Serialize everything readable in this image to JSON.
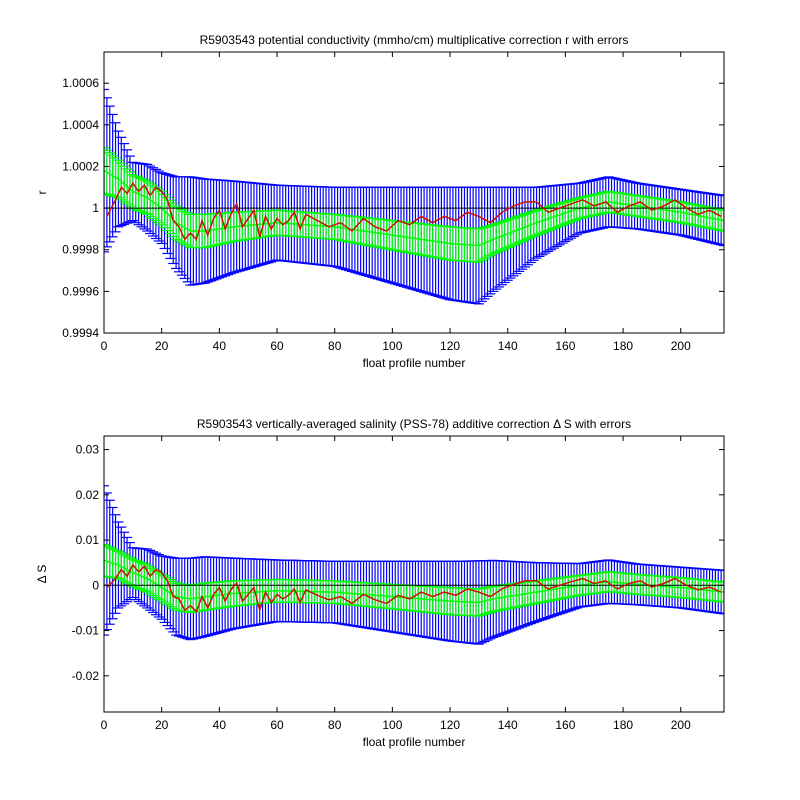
{
  "chart_data": [
    {
      "type": "line",
      "title": "R5903543 potential conductivity (mmho/cm) multiplicative correction r with errors",
      "xlabel": "float profile number",
      "ylabel": "r",
      "xlim": [
        0,
        215
      ],
      "ylim": [
        0.9994,
        1.00075
      ],
      "xticks": [
        0,
        20,
        40,
        60,
        80,
        100,
        120,
        140,
        160,
        180,
        200
      ],
      "xtick_labels": [
        "0",
        "20",
        "40",
        "60",
        "80",
        "100",
        "120",
        "140",
        "160",
        "180",
        "200"
      ],
      "yticks": [
        0.9994,
        0.9996,
        0.9998,
        1,
        1.0002,
        1.0004,
        1.0006
      ],
      "ytick_labels": [
        "0.9994",
        "0.9996",
        "0.9998",
        "1",
        "1.0002",
        "1.0004",
        "1.0006"
      ],
      "grid": false,
      "reference_line": 1,
      "series": [
        {
          "role": "fitted correction with error bars",
          "colors": {
            "fit": "#00ff00",
            "error": "#0000ff"
          },
          "points": [
            {
              "x": 0,
              "center": 1.00018,
              "inner": 0.00011,
              "outer": 0.00039
            },
            {
              "x": 5,
              "center": 1.00014,
              "inner": 9e-05,
              "outer": 0.00023
            },
            {
              "x": 10,
              "center": 1.00008,
              "inner": 8e-05,
              "outer": 0.00014
            },
            {
              "x": 15,
              "center": 1.00005,
              "inner": 8e-05,
              "outer": 0.00016
            },
            {
              "x": 20,
              "center": 1.0,
              "inner": 8e-05,
              "outer": 0.00017
            },
            {
              "x": 25,
              "center": 0.99993,
              "inner": 8e-05,
              "outer": 0.00022
            },
            {
              "x": 30,
              "center": 0.99989,
              "inner": 8e-05,
              "outer": 0.00026
            },
            {
              "x": 35,
              "center": 0.99989,
              "inner": 8e-05,
              "outer": 0.00025
            },
            {
              "x": 45,
              "center": 0.99991,
              "inner": 7e-05,
              "outer": 0.00022
            },
            {
              "x": 60,
              "center": 0.99993,
              "inner": 6e-05,
              "outer": 0.00018
            },
            {
              "x": 80,
              "center": 0.99991,
              "inner": 6e-05,
              "outer": 0.00019
            },
            {
              "x": 100,
              "center": 0.99987,
              "inner": 7e-05,
              "outer": 0.00023
            },
            {
              "x": 120,
              "center": 0.99983,
              "inner": 8e-05,
              "outer": 0.00027
            },
            {
              "x": 130,
              "center": 0.99982,
              "inner": 8e-05,
              "outer": 0.00028
            },
            {
              "x": 135,
              "center": 0.99985,
              "inner": 7e-05,
              "outer": 0.00025
            },
            {
              "x": 150,
              "center": 0.99993,
              "inner": 6e-05,
              "outer": 0.00017
            },
            {
              "x": 165,
              "center": 1.0,
              "inner": 5e-05,
              "outer": 0.00012
            },
            {
              "x": 175,
              "center": 1.00003,
              "inner": 5e-05,
              "outer": 0.00012
            },
            {
              "x": 185,
              "center": 1.00001,
              "inner": 5e-05,
              "outer": 0.00011
            },
            {
              "x": 200,
              "center": 0.99998,
              "inner": 5e-05,
              "outer": 0.00011
            },
            {
              "x": 215,
              "center": 0.99994,
              "inner": 5e-05,
              "outer": 0.00012
            }
          ]
        },
        {
          "role": "profile correction",
          "color": "#cc1100",
          "x": [
            1,
            4,
            6,
            8,
            10,
            12,
            14,
            16,
            18,
            20,
            22,
            24,
            26,
            28,
            30,
            32,
            34,
            36,
            38,
            40,
            42,
            44,
            46,
            48,
            50,
            52,
            54,
            56,
            58,
            60,
            62,
            64,
            66,
            68,
            70,
            74,
            78,
            82,
            86,
            90,
            94,
            98,
            102,
            106,
            110,
            114,
            118,
            122,
            126,
            130,
            134,
            138,
            142,
            146,
            150,
            154,
            158,
            162,
            166,
            170,
            174,
            178,
            182,
            186,
            190,
            194,
            198,
            202,
            206,
            210,
            214
          ],
          "values": [
            0.99996,
            1.00004,
            1.0001,
            1.00007,
            1.00012,
            1.00008,
            1.00011,
            1.00006,
            1.0001,
            1.00008,
            1.00004,
            0.99994,
            0.99991,
            0.99985,
            0.99988,
            0.99985,
            0.99994,
            0.99987,
            0.99995,
            0.99999,
            0.9999,
            0.99997,
            1.00002,
            0.99991,
            0.99995,
            0.99999,
            0.99986,
            0.99996,
            0.9999,
            0.99995,
            0.99992,
            0.99994,
            0.99998,
            0.9999,
            0.99997,
            0.99994,
            0.99991,
            0.99993,
            0.99989,
            0.99995,
            0.99991,
            0.99989,
            0.99994,
            0.99992,
            0.99996,
            0.99993,
            0.99996,
            0.99994,
            0.99998,
            0.99996,
            0.99993,
            0.99998,
            1.00001,
            1.00003,
            1.00003,
            0.99998,
            1.0,
            1.00002,
            1.00004,
            1.00001,
            1.00003,
            0.99998,
            1.00001,
            1.00003,
            0.99999,
            1.00001,
            1.00004,
            1.0,
            0.99997,
            0.99999,
            0.99996
          ]
        }
      ]
    },
    {
      "type": "line",
      "title": "R5903543 vertically-averaged salinity (PSS-78) additive correction Δ S with errors",
      "xlabel": "float profile number",
      "ylabel": "Δ S",
      "xlim": [
        0,
        215
      ],
      "ylim": [
        -0.028,
        0.033
      ],
      "xticks": [
        0,
        20,
        40,
        60,
        80,
        100,
        120,
        140,
        160,
        180,
        200
      ],
      "xtick_labels": [
        "0",
        "20",
        "40",
        "60",
        "80",
        "100",
        "120",
        "140",
        "160",
        "180",
        "200"
      ],
      "yticks": [
        -0.02,
        -0.01,
        0,
        0.01,
        0.02,
        0.03
      ],
      "ytick_labels": [
        "-0.02",
        "-0.01",
        "0",
        "0.01",
        "0.02",
        "0.03"
      ],
      "grid": false,
      "reference_line": 0,
      "series": [
        {
          "role": "fitted correction with error bars",
          "colors": {
            "fit": "#00ff00",
            "error": "#0000ff"
          },
          "points": [
            {
              "x": 0,
              "center": 0.0055,
              "inner": 0.0035,
              "outer": 0.0165
            },
            {
              "x": 5,
              "center": 0.0045,
              "inner": 0.003,
              "outer": 0.0095
            },
            {
              "x": 10,
              "center": 0.0028,
              "inner": 0.003,
              "outer": 0.0055
            },
            {
              "x": 15,
              "center": 0.0015,
              "inner": 0.003,
              "outer": 0.0065
            },
            {
              "x": 20,
              "center": -0.0005,
              "inner": 0.003,
              "outer": 0.007
            },
            {
              "x": 25,
              "center": -0.0025,
              "inner": 0.003,
              "outer": 0.0085
            },
            {
              "x": 30,
              "center": -0.003,
              "inner": 0.003,
              "outer": 0.009
            },
            {
              "x": 35,
              "center": -0.0025,
              "inner": 0.003,
              "outer": 0.0088
            },
            {
              "x": 45,
              "center": -0.0018,
              "inner": 0.0028,
              "outer": 0.0078
            },
            {
              "x": 60,
              "center": -0.0012,
              "inner": 0.0025,
              "outer": 0.0068
            },
            {
              "x": 80,
              "center": -0.0015,
              "inner": 0.0025,
              "outer": 0.0068
            },
            {
              "x": 100,
              "center": -0.0025,
              "inner": 0.0027,
              "outer": 0.0078
            },
            {
              "x": 120,
              "center": -0.0035,
              "inner": 0.003,
              "outer": 0.0088
            },
            {
              "x": 130,
              "center": -0.0038,
              "inner": 0.003,
              "outer": 0.0092
            },
            {
              "x": 135,
              "center": -0.003,
              "inner": 0.0028,
              "outer": 0.0085
            },
            {
              "x": 150,
              "center": -0.0015,
              "inner": 0.0025,
              "outer": 0.0065
            },
            {
              "x": 165,
              "center": 0.0,
              "inner": 0.0022,
              "outer": 0.0048
            },
            {
              "x": 175,
              "center": 0.0008,
              "inner": 0.0022,
              "outer": 0.0048
            },
            {
              "x": 185,
              "center": 0.0002,
              "inner": 0.0022,
              "outer": 0.0045
            },
            {
              "x": 200,
              "center": -0.0005,
              "inner": 0.0022,
              "outer": 0.0045
            },
            {
              "x": 215,
              "center": -0.0015,
              "inner": 0.0022,
              "outer": 0.0048
            }
          ]
        },
        {
          "role": "profile correction",
          "color": "#cc1100",
          "x": [
            1,
            4,
            6,
            8,
            10,
            12,
            14,
            16,
            18,
            20,
            22,
            24,
            26,
            28,
            30,
            32,
            34,
            36,
            38,
            40,
            42,
            44,
            46,
            48,
            50,
            52,
            54,
            56,
            58,
            60,
            62,
            64,
            66,
            68,
            70,
            74,
            78,
            82,
            86,
            90,
            94,
            98,
            102,
            106,
            110,
            114,
            118,
            122,
            126,
            130,
            134,
            138,
            142,
            146,
            150,
            154,
            158,
            162,
            166,
            170,
            174,
            178,
            182,
            186,
            190,
            194,
            198,
            202,
            206,
            210,
            214
          ],
          "values": [
            -0.0005,
            0.0015,
            0.0035,
            0.002,
            0.0045,
            0.003,
            0.0042,
            0.002,
            0.0035,
            0.0028,
            0.001,
            -0.0025,
            -0.003,
            -0.0055,
            -0.0045,
            -0.0058,
            -0.0025,
            -0.005,
            -0.002,
            -0.0005,
            -0.0035,
            -0.001,
            0.0005,
            -0.0035,
            -0.002,
            -0.0005,
            -0.0055,
            -0.0015,
            -0.0038,
            -0.002,
            -0.003,
            -0.0022,
            -0.0008,
            -0.0038,
            -0.001,
            -0.0022,
            -0.0032,
            -0.0025,
            -0.004,
            -0.002,
            -0.0032,
            -0.004,
            -0.0022,
            -0.003,
            -0.0015,
            -0.0025,
            -0.0015,
            -0.0022,
            -0.0008,
            -0.0015,
            -0.0025,
            -0.0008,
            0.0002,
            0.001,
            0.001,
            -0.0008,
            0.0,
            0.0008,
            0.0015,
            0.0004,
            0.001,
            -0.0008,
            0.0004,
            0.001,
            -0.0004,
            0.0004,
            0.0015,
            0.0,
            -0.001,
            -0.0004,
            -0.0015
          ]
        }
      ]
    }
  ]
}
